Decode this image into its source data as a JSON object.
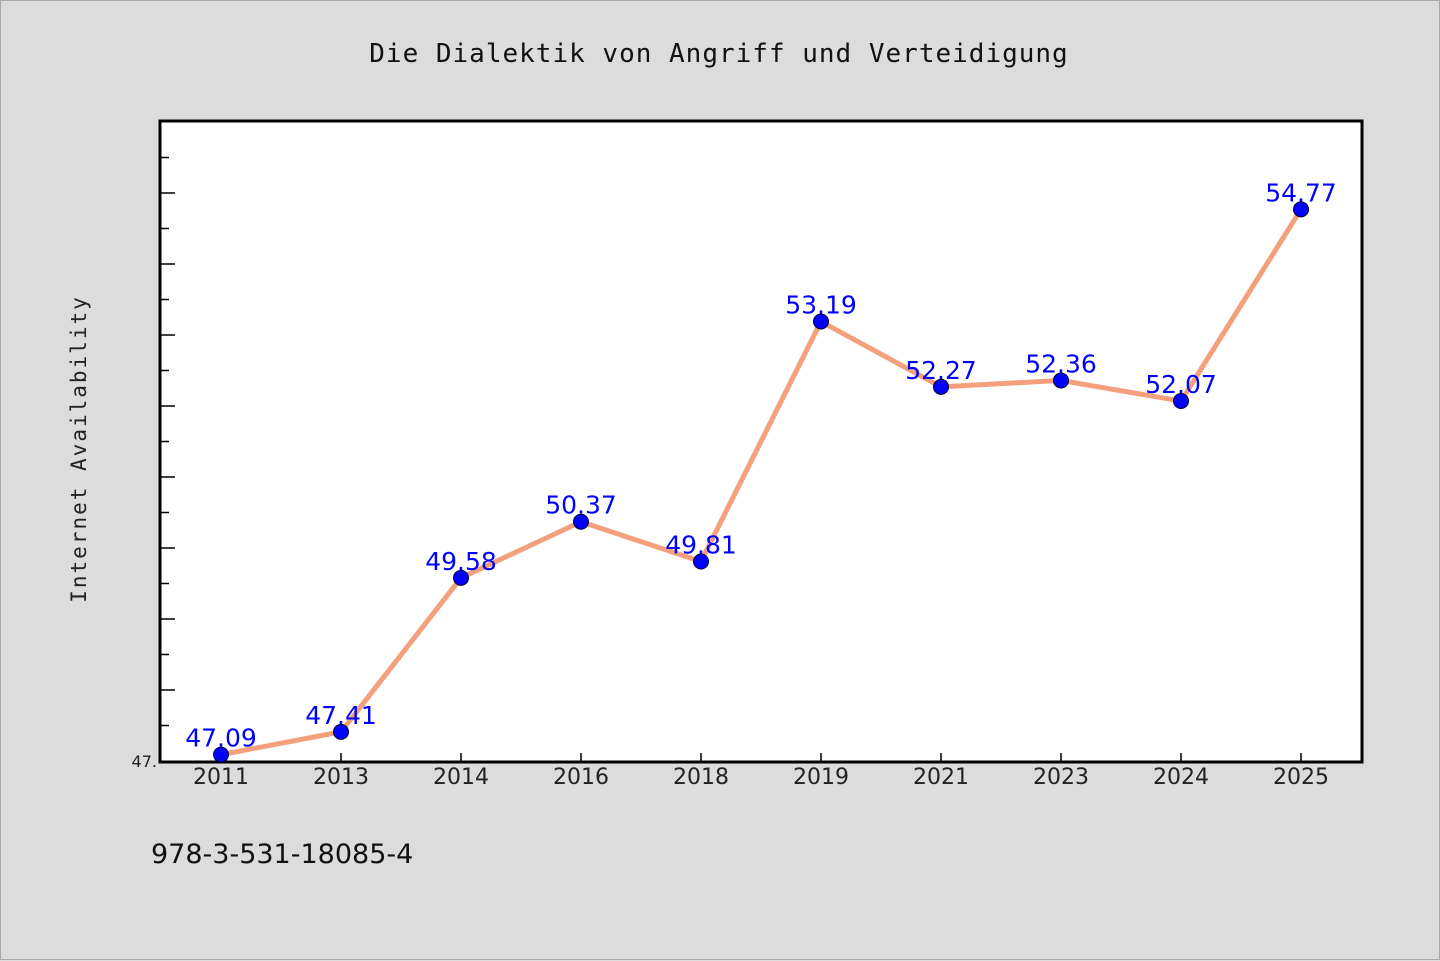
{
  "chart_data": {
    "type": "line",
    "title": "Die Dialektik von Angriff und Verteidigung",
    "xlabel": "",
    "ylabel": "Internet Availability",
    "ylim": [
      47.0,
      56.0
    ],
    "y_tick_label": "47.",
    "categories": [
      "2011",
      "2013",
      "2014",
      "2016",
      "2018",
      "2019",
      "2021",
      "2023",
      "2024",
      "2025"
    ],
    "series": [
      {
        "values": [
          47.09,
          47.41,
          49.58,
          50.37,
          49.81,
          53.19,
          52.27,
          52.36,
          52.07,
          54.77
        ],
        "labels": [
          "47.09",
          "47.41",
          "49.58",
          "50.37",
          "49.81",
          "53.19",
          "52.27",
          "52.36",
          "52.07",
          "54.77"
        ]
      }
    ],
    "line_color": "#f4a07c",
    "marker_color": "#0000ff",
    "label_color": "#0000ff",
    "grid": false,
    "legend": "none"
  },
  "footer": {
    "isbn": "978-3-531-18085-4"
  }
}
